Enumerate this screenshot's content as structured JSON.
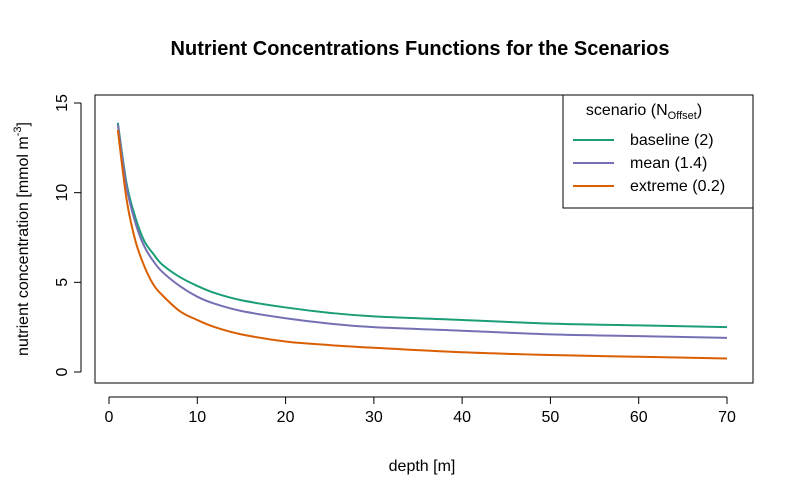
{
  "chart_data": {
    "type": "line",
    "title": "Nutrient Concentrations Functions for the Scenarios",
    "xlabel": "depth [m]",
    "ylabel": "nutrient concentration [mmol  m",
    "ylabel_superscript": "-3",
    "ylabel_close": "]",
    "xlim": [
      0,
      70
    ],
    "ylim": [
      0,
      15
    ],
    "x_ticks": [
      0,
      10,
      20,
      30,
      40,
      50,
      60,
      70
    ],
    "y_ticks": [
      0,
      5,
      10,
      15
    ],
    "x_tick_labels": [
      "0",
      "10",
      "20",
      "30",
      "40",
      "50",
      "60",
      "70"
    ],
    "y_tick_labels": [
      "0",
      "5",
      "10",
      "15"
    ],
    "grid": false,
    "legend": {
      "placement": "top-right",
      "title_main": "scenario (N",
      "title_sub": "Offset",
      "title_close": ")"
    },
    "x": [
      1,
      2,
      3,
      4,
      5,
      6,
      8,
      10,
      12,
      15,
      20,
      25,
      30,
      40,
      50,
      60,
      70
    ],
    "series": [
      {
        "name": "baseline (2)",
        "color": "#1b9e77",
        "values": [
          13.9,
          10.5,
          8.6,
          7.3,
          6.6,
          6.0,
          5.3,
          4.8,
          4.4,
          4.0,
          3.6,
          3.3,
          3.1,
          2.9,
          2.7,
          2.6,
          2.5
        ]
      },
      {
        "name": "mean (1.4)",
        "color": "#7570b3",
        "values": [
          13.8,
          10.3,
          8.3,
          7.0,
          6.2,
          5.6,
          4.8,
          4.2,
          3.8,
          3.4,
          3.0,
          2.7,
          2.5,
          2.3,
          2.1,
          2.0,
          1.9
        ]
      },
      {
        "name": "extreme (0.2)",
        "color": "#d95f02",
        "values": [
          13.5,
          9.6,
          7.3,
          5.9,
          4.9,
          4.3,
          3.4,
          2.9,
          2.5,
          2.1,
          1.7,
          1.5,
          1.35,
          1.1,
          0.95,
          0.85,
          0.75
        ]
      }
    ]
  }
}
